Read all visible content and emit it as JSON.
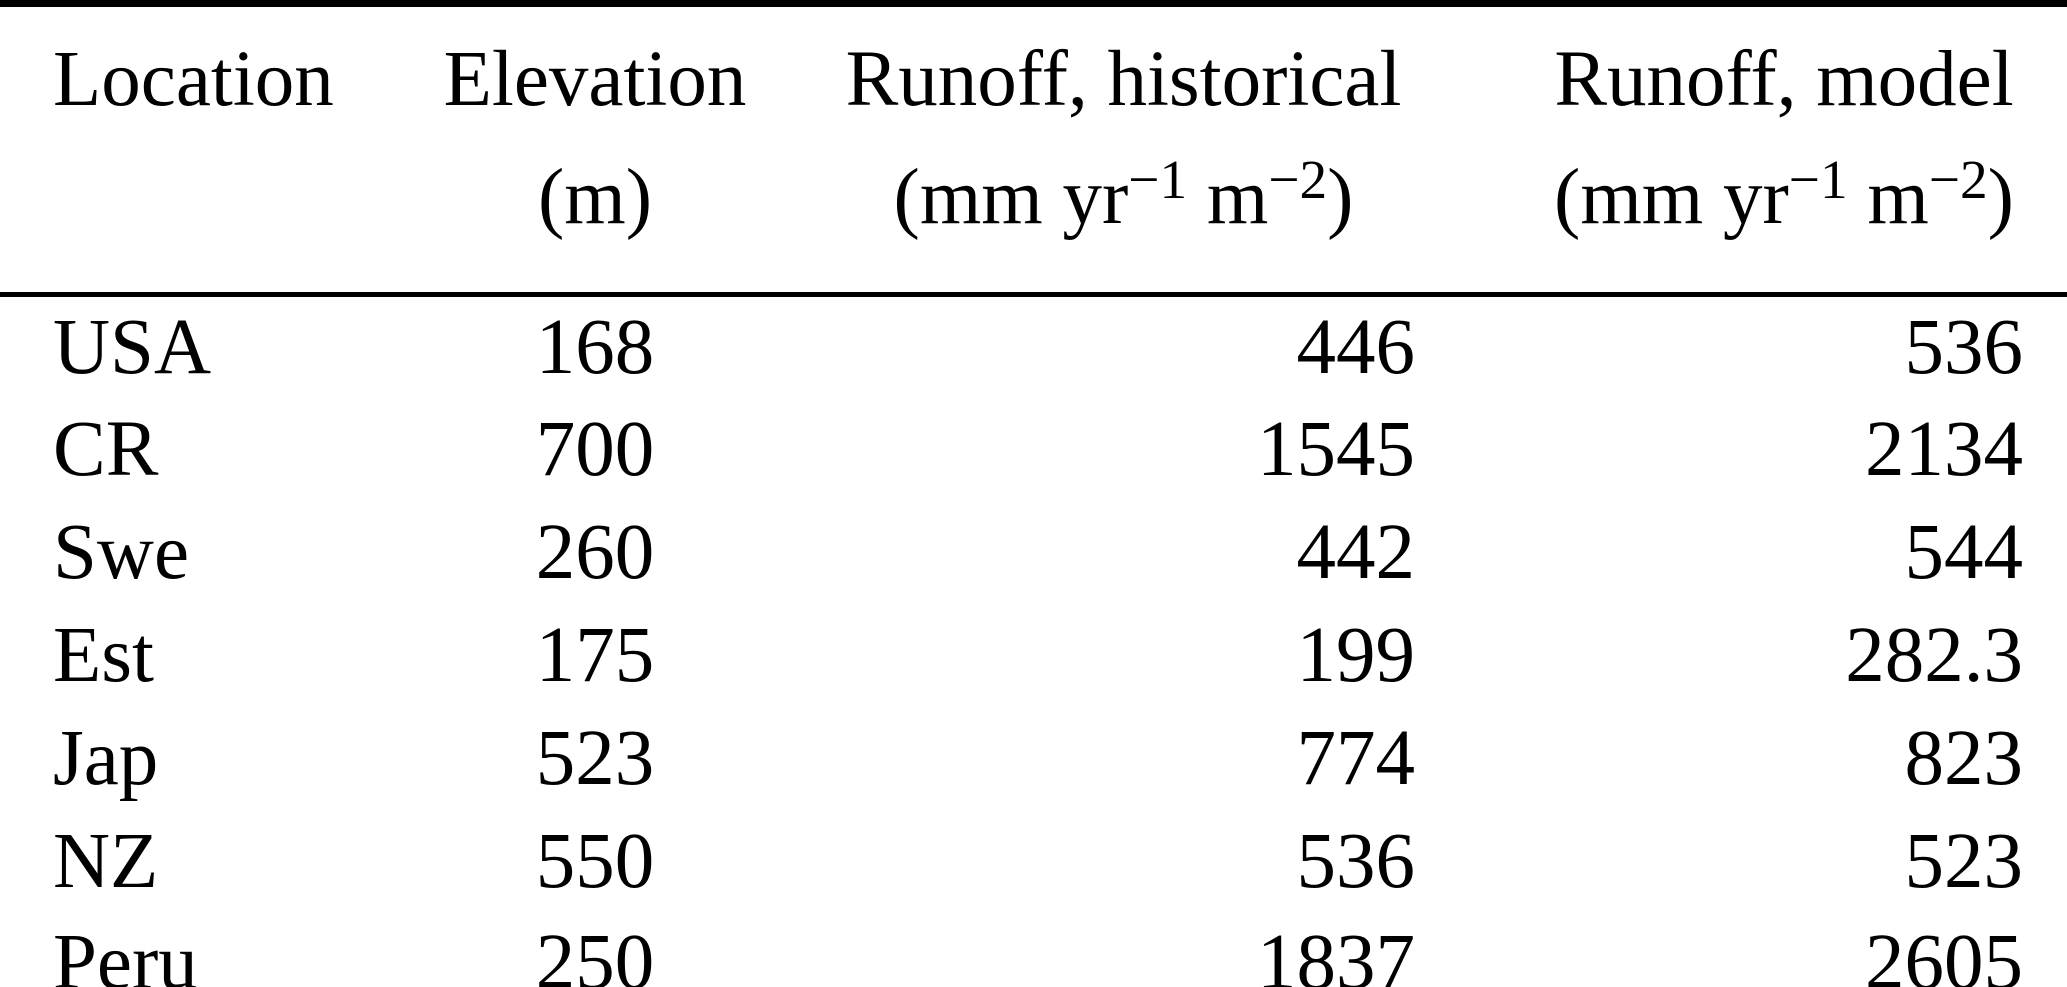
{
  "table": {
    "columns": [
      {
        "label": "Location",
        "unit": ""
      },
      {
        "label": "Elevation",
        "unit": "(m)"
      },
      {
        "label": "Runoff, historical",
        "unit_parts": {
          "p1": "(mm yr",
          "sup1": "−1",
          "p2": " m",
          "sup2": "−2",
          "p3": ")"
        }
      },
      {
        "label": "Runoff, model",
        "unit_parts": {
          "p1": "(mm yr",
          "sup1": "−1",
          "p2": " m",
          "sup2": "−2",
          "p3": ")"
        }
      }
    ],
    "rows": [
      {
        "location": "USA",
        "elevation": "168",
        "runoff_historical": "446",
        "runoff_model": "536"
      },
      {
        "location": "CR",
        "elevation": "700",
        "runoff_historical": "1545",
        "runoff_model": "2134"
      },
      {
        "location": "Swe",
        "elevation": "260",
        "runoff_historical": "442",
        "runoff_model": "544"
      },
      {
        "location": "Est",
        "elevation": "175",
        "runoff_historical": "199",
        "runoff_model": "282.3"
      },
      {
        "location": "Jap",
        "elevation": "523",
        "runoff_historical": "774",
        "runoff_model": "823"
      },
      {
        "location": "NZ",
        "elevation": "550",
        "runoff_historical": "536",
        "runoff_model": "523"
      },
      {
        "location": "Peru",
        "elevation": "250",
        "runoff_historical": "1837",
        "runoff_model": "2605"
      }
    ]
  },
  "colors": {
    "text": "#000000",
    "background": "#ffffff",
    "rule": "#000000"
  },
  "chart_data": {
    "type": "table",
    "title": "",
    "columns": [
      "Location",
      "Elevation (m)",
      "Runoff, historical (mm yr−1 m−2)",
      "Runoff, model (mm yr−1 m−2)"
    ],
    "rows": [
      [
        "USA",
        168,
        446,
        536
      ],
      [
        "CR",
        700,
        1545,
        2134
      ],
      [
        "Swe",
        260,
        442,
        544
      ],
      [
        "Est",
        175,
        199,
        282.3
      ],
      [
        "Jap",
        523,
        774,
        823
      ],
      [
        "NZ",
        550,
        536,
        523
      ],
      [
        "Peru",
        250,
        1837,
        2605
      ]
    ]
  }
}
